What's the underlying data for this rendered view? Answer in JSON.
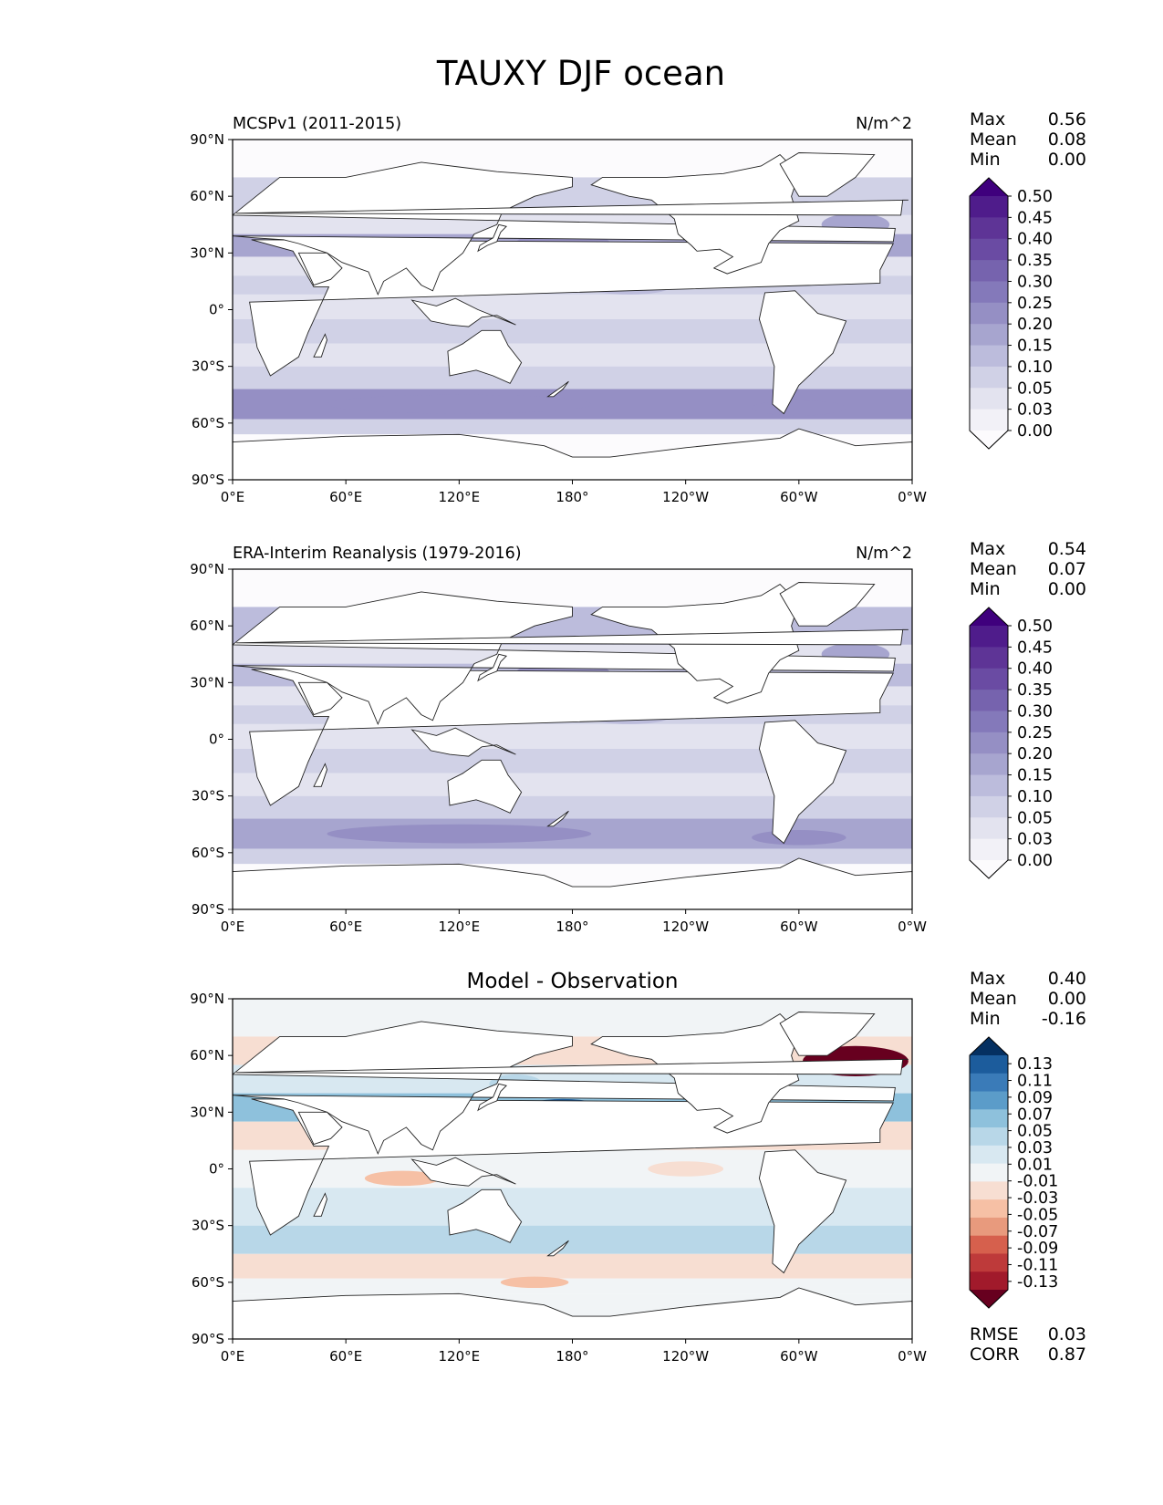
{
  "title": "TAUXY DJF ocean",
  "lat_labels": [
    "90°N",
    "60°N",
    "30°N",
    "0°",
    "30°S",
    "60°S",
    "90°S"
  ],
  "lon_labels": [
    "0°E",
    "60°E",
    "120°E",
    "180°",
    "120°W",
    "60°W",
    "0°W"
  ],
  "panels": [
    {
      "id": "model",
      "left_title": "MCSPv1 (2011-2015)",
      "center_title": "",
      "right_title": "N/m^2",
      "stats": [
        {
          "label": "Max",
          "value": "0.56"
        },
        {
          "label": "Mean",
          "value": "0.08"
        },
        {
          "label": "Min",
          "value": "0.00"
        }
      ],
      "colorbar_levels": [
        "0.50",
        "0.45",
        "0.40",
        "0.35",
        "0.30",
        "0.25",
        "0.20",
        "0.15",
        "0.10",
        "0.05",
        "0.03",
        "0.00"
      ],
      "colorbar_colors": [
        "#3f007d",
        "#4f1c8b",
        "#5e3496",
        "#6a4ba3",
        "#7663ae",
        "#8479ba",
        "#958fc4",
        "#a7a5cf",
        "#bcbcdc",
        "#d0d1e6",
        "#e3e3ef",
        "#f2f1f7",
        "#fcfbfd"
      ],
      "extra_stats": []
    },
    {
      "id": "obs",
      "left_title": "ERA-Interim Reanalysis (1979-2016)",
      "center_title": "",
      "right_title": "N/m^2",
      "stats": [
        {
          "label": "Max",
          "value": "0.54"
        },
        {
          "label": "Mean",
          "value": "0.07"
        },
        {
          "label": "Min",
          "value": "0.00"
        }
      ],
      "colorbar_levels": [
        "0.50",
        "0.45",
        "0.40",
        "0.35",
        "0.30",
        "0.25",
        "0.20",
        "0.15",
        "0.10",
        "0.05",
        "0.03",
        "0.00"
      ],
      "colorbar_colors": [
        "#3f007d",
        "#4f1c8b",
        "#5e3496",
        "#6a4ba3",
        "#7663ae",
        "#8479ba",
        "#958fc4",
        "#a7a5cf",
        "#bcbcdc",
        "#d0d1e6",
        "#e3e3ef",
        "#f2f1f7",
        "#fcfbfd"
      ],
      "extra_stats": []
    },
    {
      "id": "diff",
      "left_title": "",
      "center_title": "Model - Observation",
      "right_title": "",
      "stats": [
        {
          "label": "Max",
          "value": "0.40"
        },
        {
          "label": "Mean",
          "value": "0.00"
        },
        {
          "label": "Min",
          "value": "-0.16"
        }
      ],
      "colorbar_levels": [
        "0.13",
        "0.11",
        "0.09",
        "0.07",
        "0.05",
        "0.03",
        "0.01",
        "-0.01",
        "-0.03",
        "-0.05",
        "-0.07",
        "-0.09",
        "-0.11",
        "-0.13"
      ],
      "colorbar_colors": [
        "#053061",
        "#1c5c9c",
        "#3a7bb8",
        "#5b9cc9",
        "#8ec1dc",
        "#b8d7e8",
        "#d8e8f1",
        "#f1f4f6",
        "#f7ded2",
        "#f6c0a5",
        "#e89a7d",
        "#d6604d",
        "#be3a3a",
        "#a11a2b",
        "#67001f"
      ],
      "extra_stats": [
        {
          "label": "RMSE",
          "value": "0.03"
        },
        {
          "label": "CORR",
          "value": "0.87"
        }
      ]
    }
  ]
}
